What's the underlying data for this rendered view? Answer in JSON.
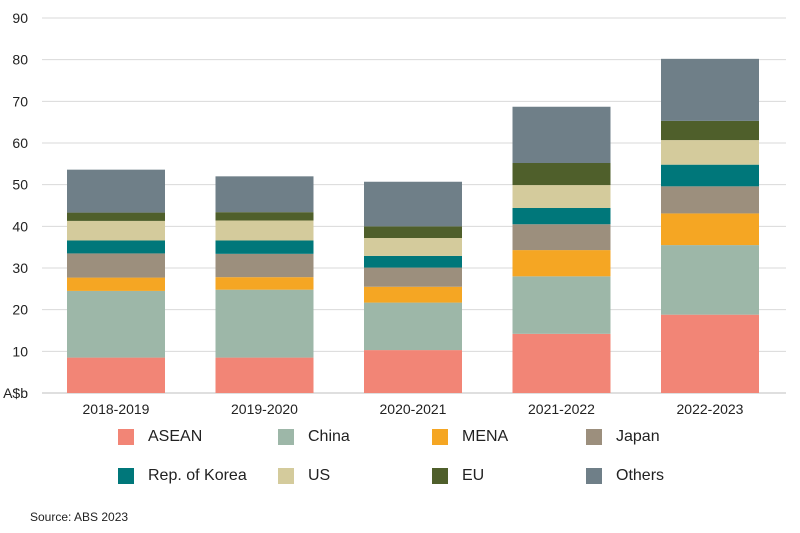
{
  "chart_data": {
    "type": "bar",
    "stacked": true,
    "ylabel": "A$b",
    "ylim": [
      0,
      90
    ],
    "yticks": [
      "A$b",
      "10",
      "20",
      "30",
      "40",
      "50",
      "60",
      "70",
      "80",
      "90"
    ],
    "grid": true,
    "categories": [
      "2018-2019",
      "2019-2020",
      "2020-2021",
      "2021-2022",
      "2022-2023"
    ],
    "series": [
      {
        "name": "ASEAN",
        "color": "#f28576",
        "values": [
          8.5,
          8.5,
          10.3,
          14.2,
          18.8
        ]
      },
      {
        "name": "China",
        "color": "#9db7a8",
        "values": [
          16.0,
          16.3,
          11.4,
          13.8,
          16.7
        ]
      },
      {
        "name": "MENA",
        "color": "#f5a623",
        "values": [
          3.2,
          3.0,
          3.8,
          6.3,
          7.6
        ]
      },
      {
        "name": "Japan",
        "color": "#9c8f7d",
        "values": [
          5.8,
          5.6,
          4.6,
          6.2,
          6.5
        ]
      },
      {
        "name": "Rep. of Korea",
        "color": "#00777a",
        "values": [
          3.1,
          3.2,
          2.8,
          3.9,
          5.2
        ]
      },
      {
        "name": "US",
        "color": "#d4cb9c",
        "values": [
          4.7,
          4.8,
          4.3,
          5.5,
          5.9
        ]
      },
      {
        "name": "EU",
        "color": "#4f5f2b",
        "values": [
          2.0,
          2.0,
          2.8,
          5.3,
          4.6
        ]
      },
      {
        "name": "Others",
        "color": "#6f7f88",
        "values": [
          10.3,
          8.6,
          10.7,
          13.5,
          14.9
        ]
      }
    ]
  },
  "source": "Source: ABS 2023"
}
